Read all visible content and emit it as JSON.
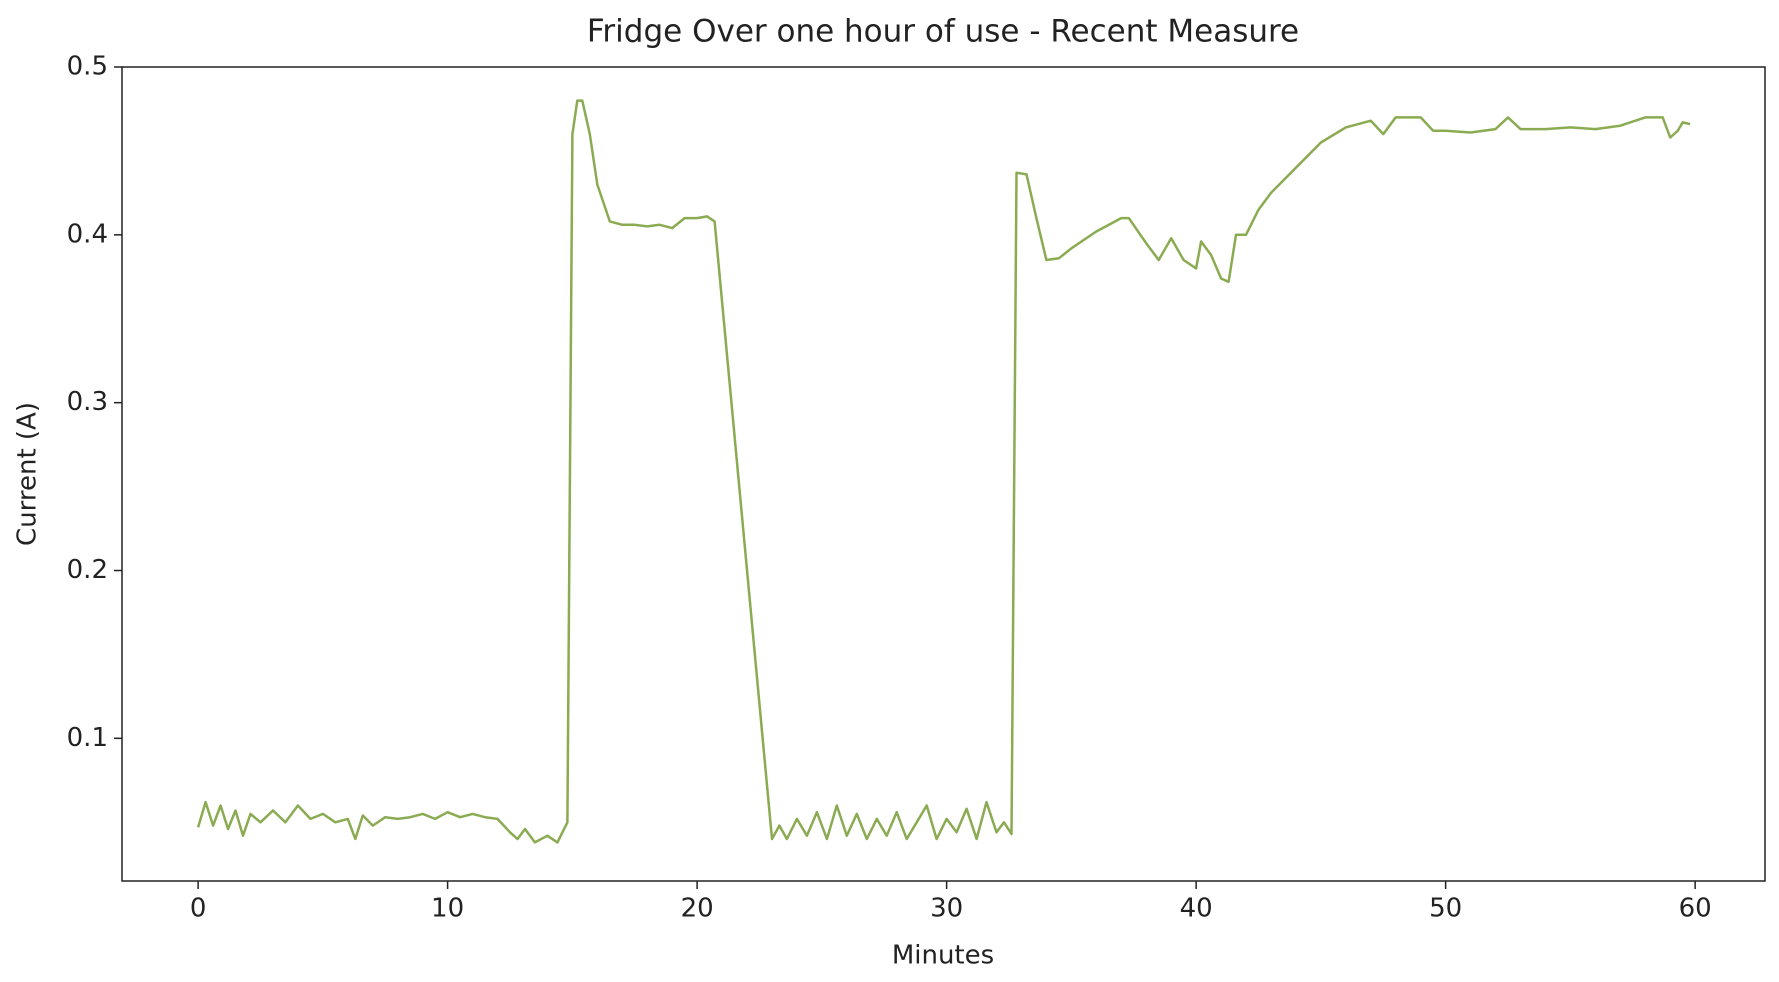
{
  "chart_data": {
    "type": "line",
    "title": "Fridge Over one hour of use - Recent Measure",
    "xlabel": "Minutes",
    "ylabel": "Current (A)",
    "xlim": [
      -3.05,
      62.8
    ],
    "ylim": [
      0.015,
      0.5
    ],
    "xticks": [
      0,
      10,
      20,
      30,
      40,
      50,
      60
    ],
    "yticks": [
      0.1,
      0.2,
      0.3,
      0.4,
      0.5
    ],
    "series": [
      {
        "color": "#8aab52",
        "x": [
          0,
          0.3,
          0.6,
          0.9,
          1.2,
          1.5,
          1.8,
          2.1,
          2.5,
          3,
          3.5,
          4,
          4.5,
          5,
          5.5,
          6,
          6.3,
          6.6,
          7,
          7.5,
          8,
          8.5,
          9,
          9.5,
          10,
          10.5,
          11,
          11.5,
          12,
          12.5,
          12.8,
          13.1,
          13.5,
          14,
          14.4,
          14.8,
          15.0,
          15.2,
          15.4,
          15.7,
          16,
          16.5,
          17,
          17.5,
          18,
          18.5,
          19,
          19.5,
          20,
          20.4,
          20.7,
          23,
          23.3,
          23.6,
          24,
          24.4,
          24.8,
          25.2,
          25.6,
          26,
          26.4,
          26.8,
          27.2,
          27.6,
          28,
          28.4,
          28.8,
          29.2,
          29.6,
          30,
          30.4,
          30.8,
          31.2,
          31.6,
          32,
          32.3,
          32.6,
          32.8,
          33.2,
          33.6,
          34,
          34.5,
          35,
          36,
          37,
          37.3,
          38,
          38.5,
          39,
          39.5,
          40,
          40.2,
          40.6,
          41,
          41.3,
          41.6,
          42,
          42.5,
          43,
          44,
          45,
          46,
          47,
          47.5,
          48,
          49,
          49.5,
          50,
          51,
          52,
          52.5,
          53,
          54,
          55,
          56,
          57,
          58,
          58.7,
          59,
          59.3,
          59.5,
          59.8
        ],
        "values": [
          0.047,
          0.062,
          0.048,
          0.06,
          0.046,
          0.057,
          0.042,
          0.055,
          0.05,
          0.057,
          0.05,
          0.06,
          0.052,
          0.055,
          0.05,
          0.052,
          0.04,
          0.054,
          0.048,
          0.053,
          0.052,
          0.053,
          0.055,
          0.052,
          0.056,
          0.053,
          0.055,
          0.053,
          0.052,
          0.044,
          0.04,
          0.046,
          0.038,
          0.042,
          0.038,
          0.05,
          0.46,
          0.48,
          0.48,
          0.46,
          0.43,
          0.408,
          0.406,
          0.406,
          0.405,
          0.406,
          0.404,
          0.41,
          0.41,
          0.411,
          0.408,
          0.04,
          0.048,
          0.04,
          0.052,
          0.042,
          0.056,
          0.04,
          0.06,
          0.042,
          0.055,
          0.04,
          0.052,
          0.042,
          0.056,
          0.04,
          0.05,
          0.06,
          0.04,
          0.052,
          0.044,
          0.058,
          0.04,
          0.062,
          0.044,
          0.05,
          0.043,
          0.437,
          0.436,
          0.41,
          0.385,
          0.386,
          0.392,
          0.402,
          0.41,
          0.41,
          0.395,
          0.385,
          0.398,
          0.385,
          0.38,
          0.396,
          0.388,
          0.374,
          0.372,
          0.4,
          0.4,
          0.415,
          0.425,
          0.44,
          0.455,
          0.464,
          0.468,
          0.46,
          0.47,
          0.47,
          0.462,
          0.462,
          0.461,
          0.463,
          0.47,
          0.463,
          0.463,
          0.464,
          0.463,
          0.465,
          0.47,
          0.47,
          0.458,
          0.462,
          0.467,
          0.466
        ]
      }
    ]
  }
}
